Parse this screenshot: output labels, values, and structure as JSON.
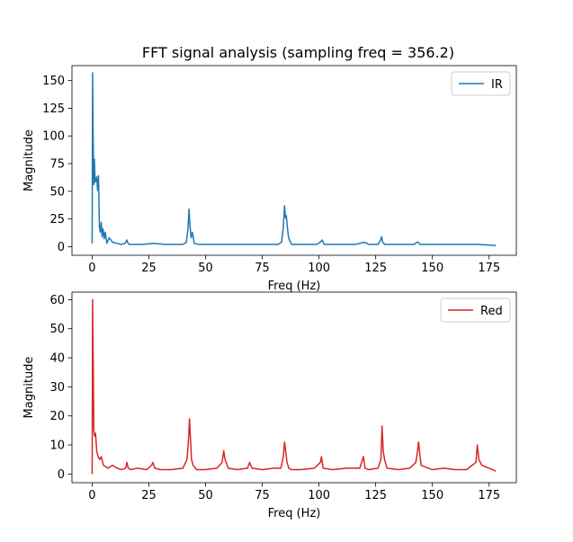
{
  "title": "FFT signal analysis (sampling freq = 356.2)",
  "chart_data": [
    {
      "type": "line",
      "xlabel": "Freq (Hz)",
      "ylabel": "Magnitude",
      "xlim": [
        -8.9,
        187.0
      ],
      "ylim": [
        -7.8,
        163.5
      ],
      "xticks": [
        0,
        25,
        50,
        75,
        100,
        125,
        150,
        175
      ],
      "yticks": [
        0,
        25,
        50,
        75,
        100,
        125,
        150
      ],
      "grid": false,
      "legend_position": "top-right",
      "series": [
        {
          "name": "IR",
          "color": "#1f77b4",
          "x": [
            0,
            0.2,
            0.4,
            0.7,
            1.0,
            1.3,
            1.6,
            2.0,
            2.4,
            2.8,
            3.2,
            3.6,
            4.0,
            4.4,
            4.8,
            5.3,
            5.8,
            6.5,
            7.5,
            9,
            11,
            13,
            14.5,
            15.3,
            15.8,
            16.5,
            18,
            22,
            27,
            32,
            36,
            40,
            41.5,
            42.2,
            42.7,
            43.1,
            43.6,
            44.2,
            45,
            47,
            52,
            58,
            63,
            68,
            73,
            78,
            82,
            83.5,
            84.3,
            84.8,
            85.2,
            85.6,
            86.1,
            86.6,
            87.2,
            88,
            90,
            95,
            99,
            100.5,
            101.4,
            102.3,
            104,
            110,
            116,
            120,
            122,
            126,
            127.2,
            127.6,
            128.1,
            129,
            133,
            138,
            142,
            143.2,
            143.7,
            144.6,
            147,
            155,
            162,
            170,
            178
          ],
          "values": [
            3,
            157,
            105,
            56,
            79,
            58,
            60,
            63,
            51,
            64,
            18,
            13,
            22,
            9,
            16,
            7,
            13,
            3,
            8,
            4,
            3,
            2,
            3,
            6,
            3,
            2,
            2,
            2,
            3,
            2,
            2,
            2,
            4,
            15,
            34,
            20,
            8,
            13,
            3,
            2,
            2,
            2,
            2,
            2,
            2,
            2,
            2,
            4,
            18,
            37,
            26,
            28,
            17,
            8,
            5,
            2,
            2,
            2,
            2,
            4,
            6,
            2,
            2,
            2,
            2,
            4,
            2,
            2,
            6,
            9,
            4,
            2,
            2,
            2,
            2,
            4,
            4,
            2,
            2,
            2,
            2,
            2,
            1
          ]
        }
      ]
    },
    {
      "type": "line",
      "xlabel": "Freq (Hz)",
      "ylabel": "Magnitude",
      "xlim": [
        -8.9,
        187.0
      ],
      "ylim": [
        -2.98,
        62.6
      ],
      "xticks": [
        0,
        25,
        50,
        75,
        100,
        125,
        150,
        175
      ],
      "yticks": [
        0,
        10,
        20,
        30,
        40,
        50,
        60
      ],
      "grid": false,
      "legend_position": "top-right",
      "series": [
        {
          "name": "Red",
          "color": "#d62728",
          "x": [
            0,
            0.2,
            0.45,
            0.75,
            1.1,
            1.5,
            2.0,
            2.6,
            3.3,
            4,
            5,
            7,
            9,
            11,
            13,
            14.7,
            15.3,
            15.9,
            17,
            20,
            24,
            26.2,
            26.8,
            27.6,
            30,
            35,
            40,
            41.8,
            42.5,
            42.9,
            43.3,
            43.8,
            44.5,
            46,
            50,
            55,
            57.3,
            58.0,
            58.6,
            60,
            64,
            68.5,
            69.4,
            70.5,
            75,
            80,
            83.2,
            84.3,
            84.8,
            85.3,
            85.9,
            86.7,
            88,
            92,
            98,
            100.6,
            101.1,
            101.8,
            106,
            112,
            118,
            119.6,
            120.3,
            122,
            126,
            127.3,
            127.8,
            128.3,
            128.9,
            130,
            135,
            140,
            142.7,
            143.3,
            143.9,
            145,
            150,
            155,
            160,
            165,
            169.2,
            169.8,
            170.5,
            171.8,
            175,
            178
          ],
          "values": [
            0,
            60,
            40,
            15,
            13,
            14,
            8,
            6,
            5,
            6,
            3,
            2,
            3,
            2,
            1.5,
            2,
            4,
            2,
            1.5,
            2,
            1.5,
            3,
            4,
            2,
            1.5,
            1.5,
            2,
            5,
            12,
            19,
            13,
            5,
            3,
            1.5,
            1.5,
            2,
            4,
            8,
            5,
            2,
            1.5,
            2,
            4,
            2,
            1.5,
            2,
            2,
            6,
            11,
            8,
            4,
            2,
            1.5,
            1.5,
            2,
            4,
            6,
            2,
            1.5,
            2,
            2,
            6,
            2,
            1.5,
            2,
            5,
            16.5,
            8,
            5,
            2,
            1.5,
            2,
            4,
            7,
            11,
            3,
            1.5,
            2,
            1.5,
            1.5,
            4,
            10,
            5,
            3,
            2,
            1
          ]
        }
      ]
    }
  ]
}
